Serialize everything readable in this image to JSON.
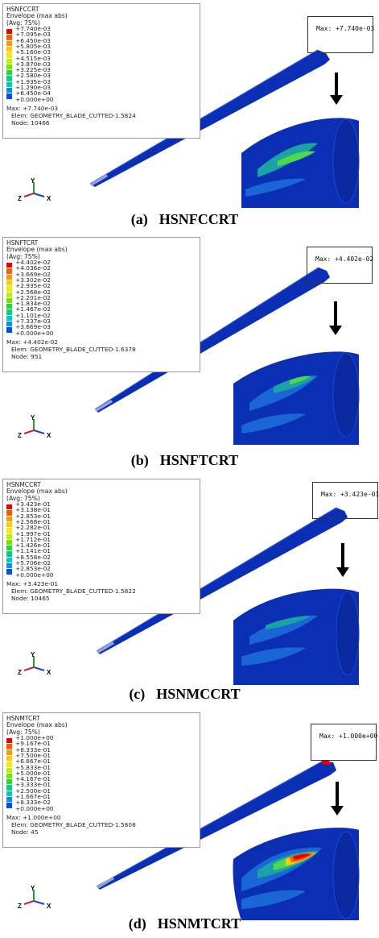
{
  "panels": [
    {
      "title": "HSNFCCRT",
      "envelope": "Envelope (max abs)",
      "avg": "(Avg: 75%)",
      "values": [
        "+7.740e-03",
        "+7.095e-03",
        "+6.450e-03",
        "+5.805e-03",
        "+5.160e-03",
        "+4.515e-03",
        "+3.870e-03",
        "+3.225e-03",
        "+2.580e-03",
        "+1.935e-03",
        "+1.290e-03",
        "+6.450e-04",
        "+0.000e+00"
      ],
      "max": "Max: +7.740e-03",
      "elem": "Elem: GEOMETRY_BLADE_CUTTED-1.5824",
      "node": "Node: 10466",
      "box_label": "Max: +7.740e-03",
      "caption_label": "(a)",
      "caption_name": "HSNFCCRT"
    },
    {
      "title": "HSNFTCRT",
      "envelope": "Envelope (max abs)",
      "avg": "(Avg: 75%)",
      "values": [
        "+4.402e-02",
        "+4.036e-02",
        "+3.669e-02",
        "+3.302e-02",
        "+2.935e-02",
        "+2.568e-02",
        "+2.201e-02",
        "+1.834e-02",
        "+1.467e-02",
        "+1.101e-02",
        "+7.337e-03",
        "+3.669e-03",
        "+0.000e+00"
      ],
      "max": "Max: +4.402e-02",
      "elem": "Elem: GEOMETRY_BLADE_CUTTED-1.6378",
      "node": "Node: 951",
      "box_label": "Max: +4.402e-02",
      "caption_label": "(b)",
      "caption_name": "HSNFTCRT"
    },
    {
      "title": "HSNMCCRT",
      "envelope": "Envelope (max abs)",
      "avg": "(Avg: 75%)",
      "values": [
        "+3.423e-01",
        "+3.138e-01",
        "+2.853e-01",
        "+2.568e-01",
        "+2.282e-01",
        "+1.997e-01",
        "+1.712e-01",
        "+1.426e-01",
        "+1.141e-01",
        "+8.558e-02",
        "+5.706e-02",
        "+2.853e-02",
        "+0.000e+00"
      ],
      "max": "Max: +3.423e-01",
      "elem": "Elem: GEOMETRY_BLADE_CUTTED-1.5822",
      "node": "Node: 10465",
      "box_label": "Max: +3.423e-01",
      "caption_label": "(c)",
      "caption_name": "HSNMCCRT"
    },
    {
      "title": "HSNMTCRT",
      "envelope": "Envelope (max abs)",
      "avg": "(Avg: 75%)",
      "values": [
        "+1.000e+00",
        "+9.167e-01",
        "+8.333e-01",
        "+7.500e-01",
        "+6.667e-01",
        "+5.833e-01",
        "+5.000e-01",
        "+4.167e-01",
        "+3.333e-01",
        "+2.500e-01",
        "+1.667e-01",
        "+8.333e-02",
        "+0.000e+00"
      ],
      "max": "Max: +1.000e+00",
      "elem": "Elem: GEOMETRY_BLADE_CUTTED-1.5808",
      "node": "Node: 45",
      "box_label": "Max: +1.000e+00",
      "caption_label": "(d)",
      "caption_name": "HSNMTCRT"
    }
  ],
  "axis_labels": {
    "y": "Y",
    "z": "Z",
    "x": "X"
  },
  "scale_colors": [
    "#e60000",
    "#ff5a00",
    "#ff9900",
    "#ffcc00",
    "#f0ee00",
    "#b8f000",
    "#6ee800",
    "#22dd22",
    "#00d088",
    "#00c8c8",
    "#0096e0",
    "#0050e6",
    "#0000d0"
  ],
  "blade_color": "#0b2fb4"
}
